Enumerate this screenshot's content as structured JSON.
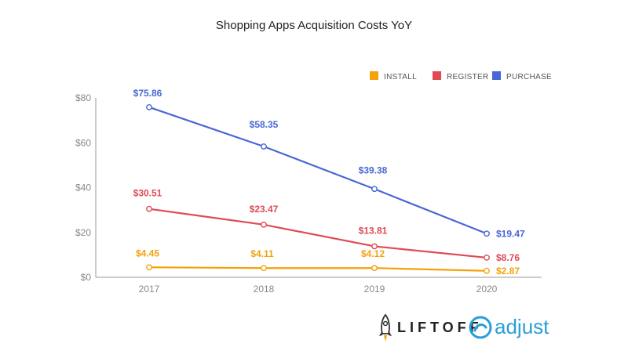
{
  "title": "Shopping Apps Acquisition Costs YoY",
  "logos": {
    "liftoff": "LIFTOFF",
    "adjust": "adjust"
  },
  "chart_data": {
    "type": "line",
    "title": "Shopping Apps Acquisition Costs YoY",
    "categories": [
      "2017",
      "2018",
      "2019",
      "2020"
    ],
    "ylim": [
      0,
      80
    ],
    "yticks": [
      "$0",
      "$20",
      "$40",
      "$60",
      "$80"
    ],
    "grid": false,
    "legend_position": "top-right",
    "series": [
      {
        "name": "INSTALL",
        "color": "#f4a20c",
        "values": [
          4.45,
          4.11,
          4.12,
          2.87
        ],
        "labels": [
          "$4.45",
          "$4.11",
          "$4.12",
          "$2.87"
        ]
      },
      {
        "name": "REGISTER",
        "color": "#df4a55",
        "values": [
          30.51,
          23.47,
          13.81,
          8.76
        ],
        "labels": [
          "$30.51",
          "$23.47",
          "$13.81",
          "$8.76"
        ]
      },
      {
        "name": "PURCHASE",
        "color": "#4a67d6",
        "values": [
          75.86,
          58.35,
          39.38,
          19.47
        ],
        "labels": [
          "$75.86",
          "$58.35",
          "$39.38",
          "$19.47"
        ]
      }
    ]
  }
}
